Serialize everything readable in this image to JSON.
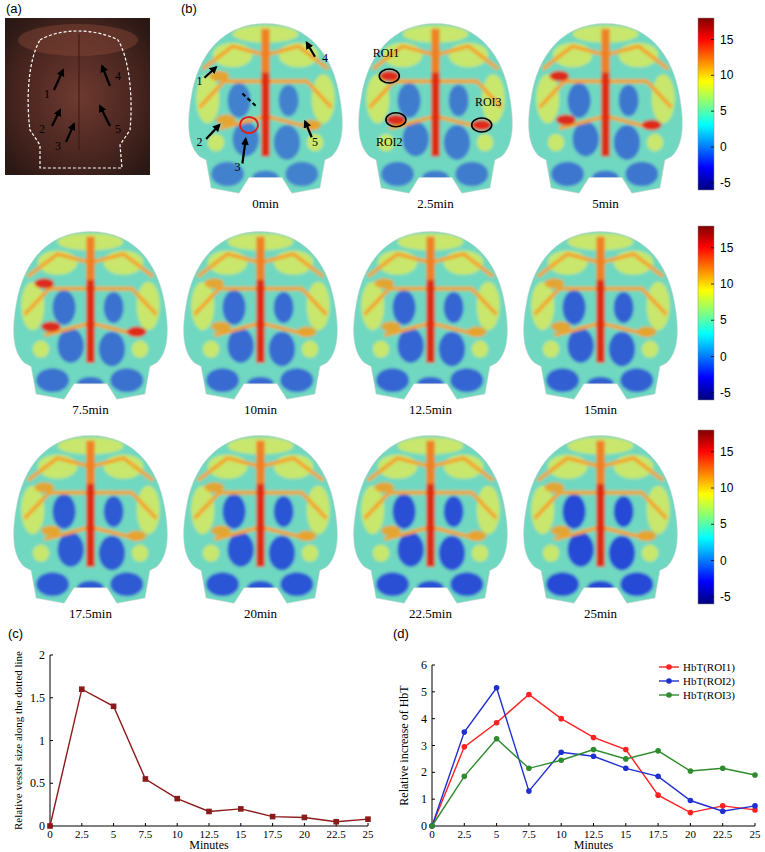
{
  "chart_data": [
    {
      "type": "line",
      "panel": "(c)",
      "x_label": "Minutes",
      "y_label": "Relative vessel size along the dotted line",
      "x": [
        0,
        2.5,
        5,
        7.5,
        10,
        12.5,
        15,
        17.5,
        20,
        22.5,
        25
      ],
      "values": [
        0,
        1.6,
        1.4,
        0.55,
        0.32,
        0.17,
        0.2,
        0.11,
        0.1,
        0.05,
        0.08
      ],
      "color": "#8b1a1a",
      "marker": "square",
      "xlim": [
        0,
        25
      ],
      "ylim": [
        0,
        2
      ],
      "xticks": [
        0,
        2.5,
        5,
        7.5,
        10,
        12.5,
        15,
        17.5,
        20,
        22.5,
        25
      ],
      "yticks": [
        0,
        0.5,
        1,
        1.5,
        2
      ],
      "grid": false
    },
    {
      "type": "line",
      "panel": "(d)",
      "x_label": "Minutes",
      "y_label": "Relative increase of HbT",
      "x": [
        0,
        2.5,
        5,
        7.5,
        10,
        12.5,
        15,
        17.5,
        20,
        22.5,
        25
      ],
      "series": [
        {
          "name": "HbT(ROI1)",
          "color": "#ff2020",
          "marker": "circle",
          "values": [
            0,
            2.95,
            3.85,
            4.9,
            4.0,
            3.3,
            2.85,
            1.15,
            0.5,
            0.75,
            0.6
          ]
        },
        {
          "name": "HbT(ROI2)",
          "color": "#1f2fd0",
          "marker": "circle",
          "values": [
            0,
            3.5,
            5.15,
            1.3,
            2.75,
            2.6,
            2.15,
            1.85,
            0.95,
            0.55,
            0.75
          ]
        },
        {
          "name": "HbT(ROI3)",
          "color": "#2e8b2e",
          "marker": "circle",
          "values": [
            0,
            1.85,
            3.25,
            2.15,
            2.45,
            2.85,
            2.5,
            2.8,
            2.05,
            2.15,
            1.9
          ]
        }
      ],
      "xlim": [
        0,
        25
      ],
      "ylim": [
        0,
        6
      ],
      "xticks": [
        0,
        2.5,
        5,
        7.5,
        10,
        12.5,
        15,
        17.5,
        20,
        22.5,
        25
      ],
      "yticks": [
        0,
        1,
        2,
        3,
        4,
        5,
        6
      ],
      "grid": false,
      "legend": "top-right"
    }
  ],
  "panel_a": {
    "label": "(a)",
    "arrows": [
      "1",
      "2",
      "3",
      "4",
      "5"
    ]
  },
  "panel_b": {
    "label": "(b)",
    "frames": [
      "0min",
      "2.5min",
      "5min",
      "7.5min",
      "10min",
      "12.5min",
      "15min",
      "17.5min",
      "20min",
      "22.5min",
      "25min"
    ],
    "arrows": [
      "1",
      "2",
      "3",
      "4",
      "5"
    ],
    "rois": [
      "ROI1",
      "ROI2",
      "ROI3"
    ],
    "colorbar": {
      "range": [
        -6,
        18
      ],
      "ticks": [
        -5,
        0,
        5,
        10,
        15
      ]
    }
  }
}
